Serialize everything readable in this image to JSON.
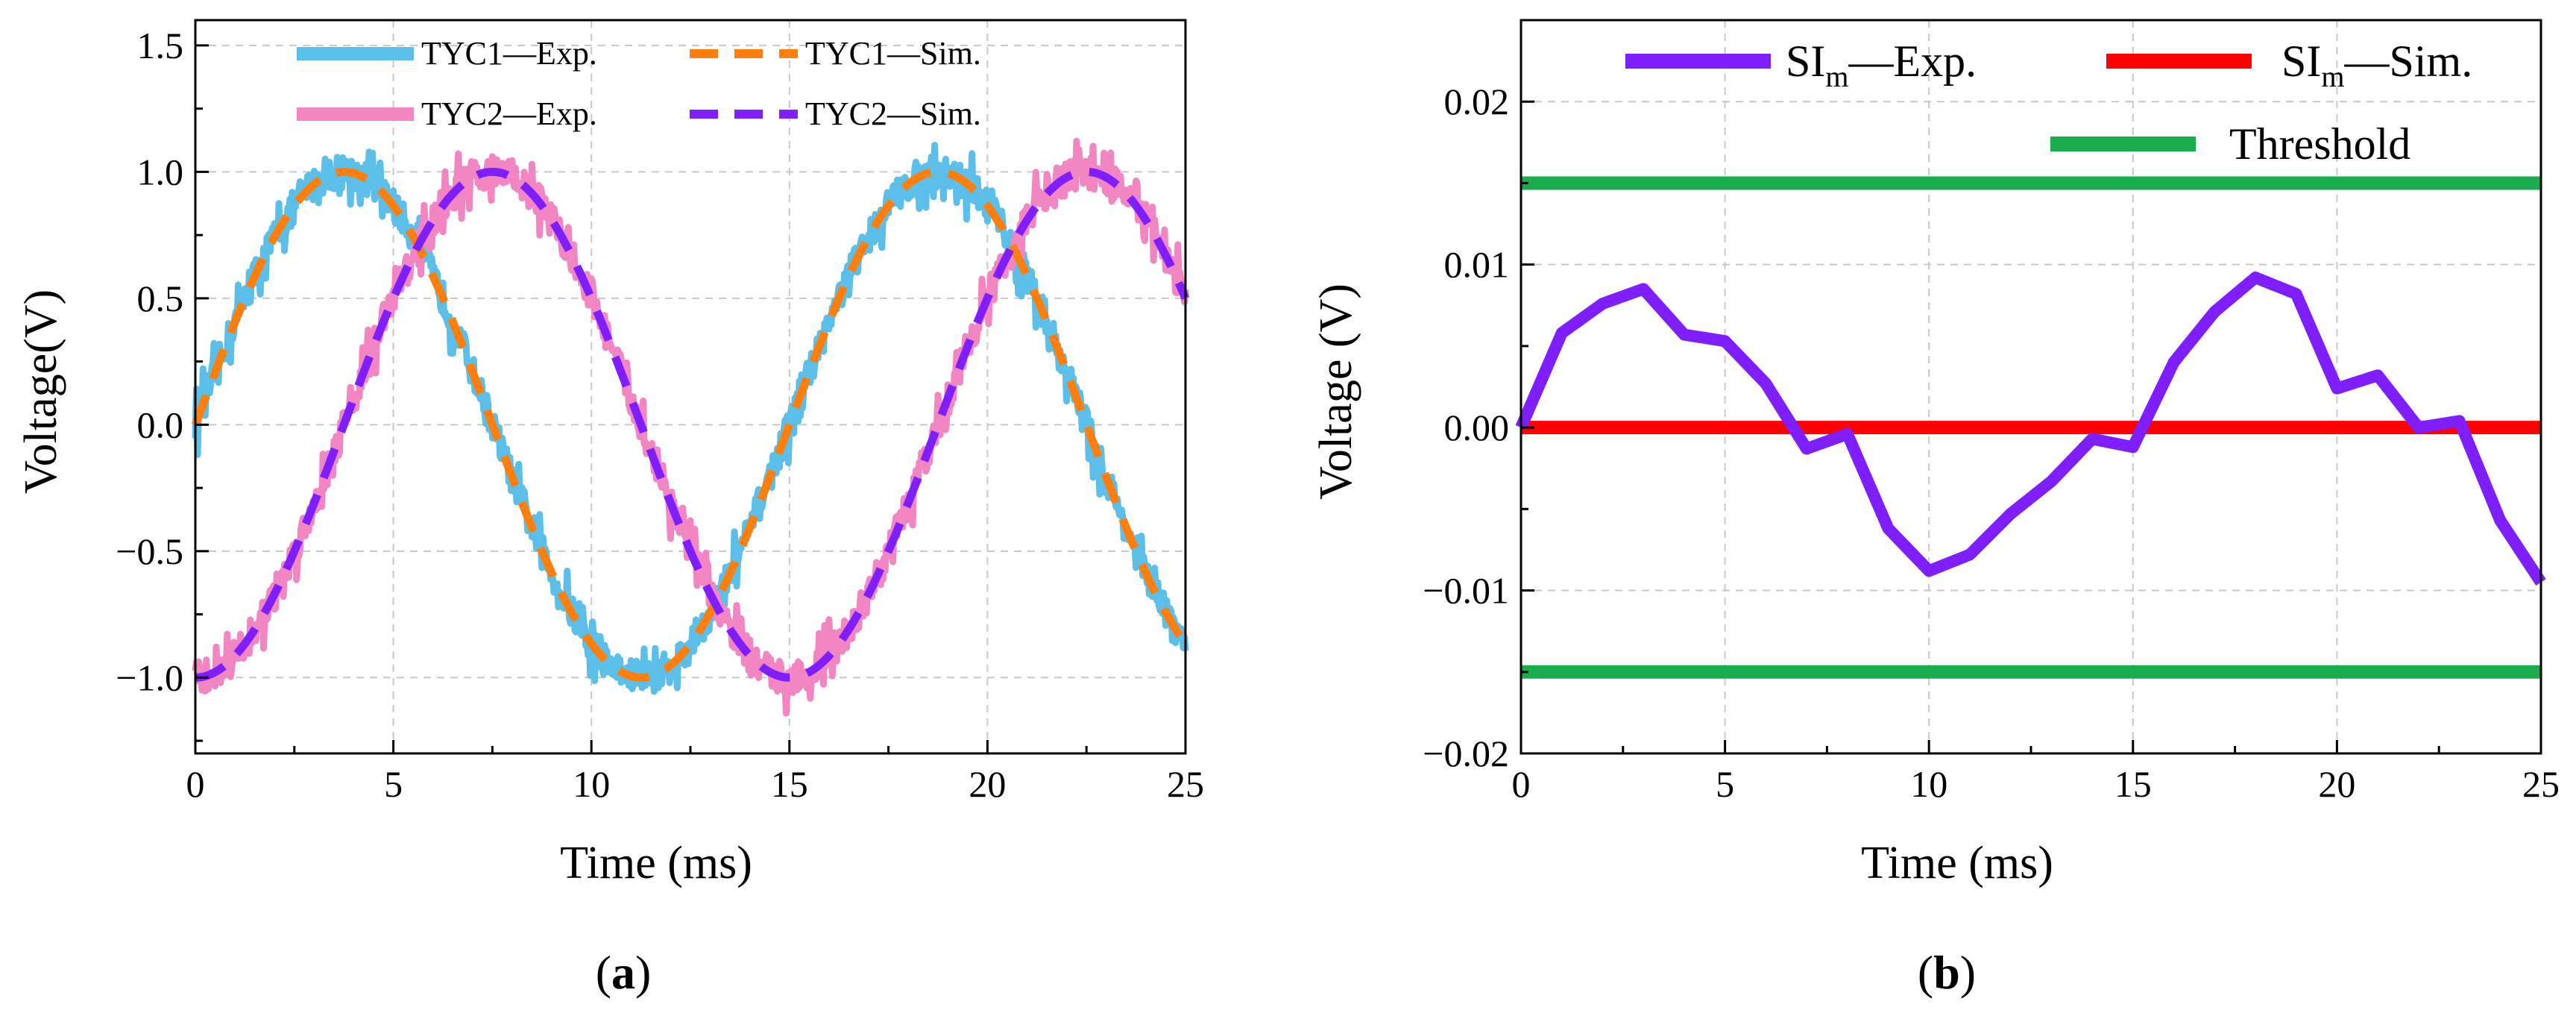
{
  "colors": {
    "tyc1_exp": "#5bbfe9",
    "tyc1_sim": "#ff7f0e",
    "tyc2_exp": "#f286c3",
    "tyc2_sim": "#7f1fff",
    "sim_exp": "#7f1fff",
    "sim_sim": "#ff0000",
    "threshold": "#1aad4e",
    "grid": "#c8c8c8"
  },
  "chart_data": [
    {
      "type": "line",
      "caption": "(a)",
      "caption_letter": "a",
      "xlabel": "Time (ms)",
      "ylabel": "Voltage(V)",
      "xlim": [
        0,
        25
      ],
      "ylim": [
        -1.3,
        1.6
      ],
      "xticks": [
        0,
        5,
        10,
        15,
        20,
        25
      ],
      "yticks": [
        -1.0,
        -0.5,
        0.0,
        0.5,
        1.0,
        1.5
      ],
      "ytick_labels": [
        "−1.0",
        "−0.5",
        "0.0",
        "0.5",
        "1.0",
        "1.5"
      ],
      "grid": true,
      "legend_position": "top",
      "signal": {
        "function": "sine",
        "period_ms": 15,
        "amplitude_V": 1.0,
        "phase_offset_ms_tyc2": -3.75
      },
      "series": [
        {
          "name": "TYC1—Exp.",
          "style": "solid-noisy",
          "color_key": "tyc1_exp",
          "peak_V": 1.0,
          "noise_V": 0.12
        },
        {
          "name": "TYC1—Sim.",
          "style": "dashed",
          "color_key": "tyc1_sim",
          "peak_V": 1.0
        },
        {
          "name": "TYC2—Exp.",
          "style": "solid-noisy",
          "color_key": "tyc2_exp",
          "peak_V": 1.0,
          "noise_V": 0.12
        },
        {
          "name": "TYC2—Sim.",
          "style": "dashed",
          "color_key": "tyc2_sim",
          "peak_V": 1.0
        }
      ]
    },
    {
      "type": "line",
      "caption": "(b)",
      "caption_letter": "b",
      "xlabel": "Time (ms)",
      "ylabel": "Voltage (V)",
      "xlim": [
        0,
        25
      ],
      "ylim": [
        -0.02,
        0.025
      ],
      "xticks": [
        0,
        5,
        10,
        15,
        20,
        25
      ],
      "yticks": [
        -0.02,
        -0.01,
        0.0,
        0.01,
        0.02
      ],
      "ytick_labels": [
        "−0.02",
        "−0.01",
        "0.00",
        "0.01",
        "0.02"
      ],
      "grid": true,
      "legend_position": "top-right",
      "series": [
        {
          "name": "SI",
          "subscript": "m",
          "suffix": "—Exp.",
          "color_key": "sim_exp",
          "x": [
            0,
            1,
            2,
            3,
            4,
            5,
            6,
            7,
            8,
            9,
            10,
            11,
            12,
            13,
            14,
            15,
            16,
            17,
            18,
            19,
            20,
            21,
            22,
            23,
            24,
            25
          ],
          "y": [
            0.0,
            0.0058,
            0.0076,
            0.0085,
            0.0057,
            0.0053,
            0.0027,
            -0.0013,
            -0.0004,
            -0.0062,
            -0.0088,
            -0.0078,
            -0.0053,
            -0.0033,
            -0.0007,
            -0.0012,
            0.004,
            0.0071,
            0.0092,
            0.0082,
            0.0024,
            0.0032,
            0.0,
            0.0004,
            -0.0057,
            -0.0095
          ]
        },
        {
          "name": "SI",
          "subscript": "m",
          "suffix": "—Sim.",
          "color_key": "sim_sim",
          "x": [
            0,
            25
          ],
          "y": [
            0.0,
            0.0
          ]
        },
        {
          "name": "Threshold",
          "color_key": "threshold",
          "levels": [
            0.015,
            -0.015
          ]
        }
      ]
    }
  ]
}
